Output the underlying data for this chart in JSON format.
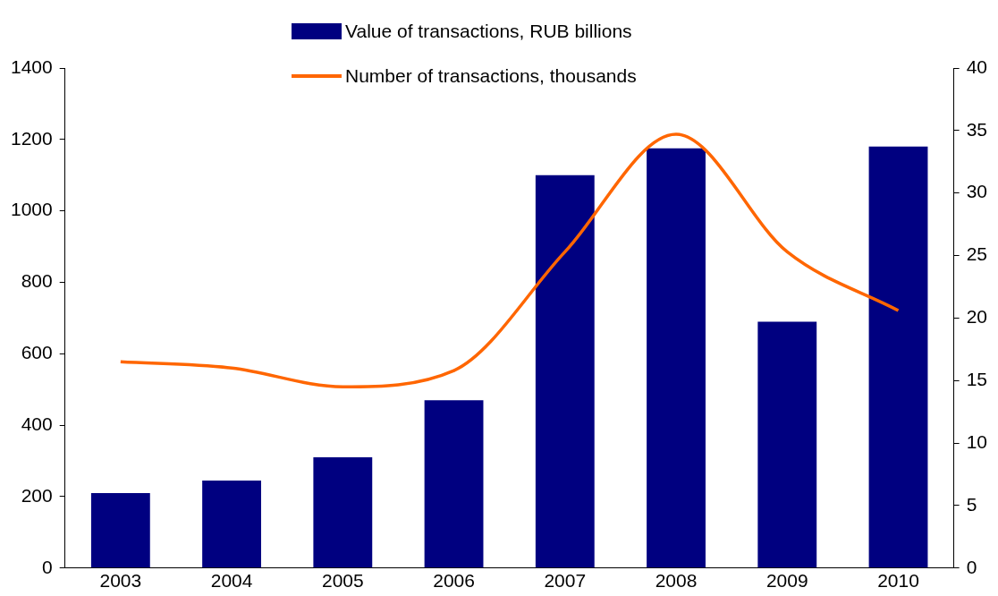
{
  "chart_data": {
    "type": "bar",
    "categories": [
      "2003",
      "2004",
      "2005",
      "2006",
      "2007",
      "2008",
      "2009",
      "2010"
    ],
    "series": [
      {
        "name": "Value of transactions, RUB billions",
        "color": "#000080",
        "values": [
          210,
          245,
          310,
          470,
          1100,
          1175,
          690,
          1180
        ]
      },
      {
        "name": "Number of transactions, thousands",
        "type": "line",
        "axis": "y2",
        "color": "#ff6600",
        "values": [
          16.5,
          16.0,
          14.5,
          15.8,
          25.3,
          34.7,
          25.3,
          20.6
        ]
      }
    ],
    "ylim": [
      0,
      1400
    ],
    "yticks": [
      0,
      200,
      400,
      600,
      800,
      1000,
      1200,
      1400
    ],
    "y2lim": [
      0,
      40
    ],
    "y2ticks": [
      0,
      5,
      10,
      15,
      20,
      25,
      30,
      35,
      40
    ],
    "grid": false,
    "legend": "top",
    "marker": "none"
  }
}
